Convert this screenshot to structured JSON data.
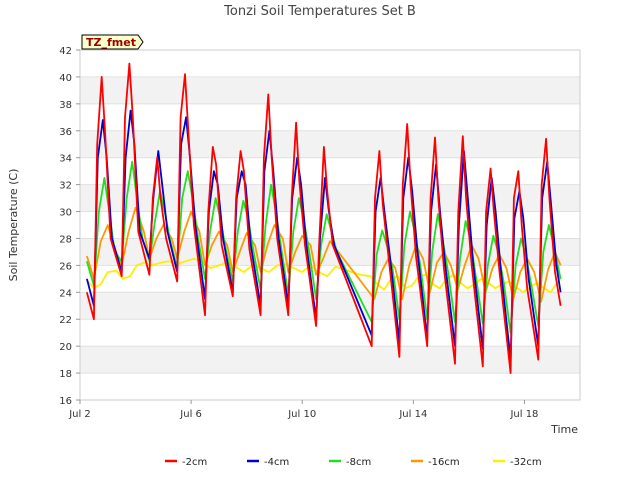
{
  "chart_data": {
    "type": "line",
    "title": "Tonzi Soil Temperatures Set B",
    "xlabel": "Time",
    "ylabel": "Soil Temperature (C)",
    "annotation": "TZ_fmet",
    "xlim": [
      2.0,
      20.0
    ],
    "ylim": [
      16,
      42
    ],
    "x_ticks": [
      {
        "value": 2,
        "label": "Jul 2"
      },
      {
        "value": 6,
        "label": "Jul 6"
      },
      {
        "value": 10,
        "label": "Jul 10"
      },
      {
        "value": 14,
        "label": "Jul 14"
      },
      {
        "value": 18,
        "label": "Jul 18"
      }
    ],
    "y_ticks": [
      16,
      18,
      20,
      22,
      24,
      26,
      28,
      30,
      32,
      34,
      36,
      38,
      40,
      42
    ],
    "grid": "horizontal bands",
    "legend_position": "bottom",
    "series": [
      {
        "name": "-2cm",
        "color": "#ff0000",
        "x": [
          2.25,
          2.5,
          2.62,
          2.78,
          2.9,
          3.1,
          3.5,
          3.62,
          3.78,
          3.9,
          4.1,
          4.5,
          4.62,
          4.78,
          4.9,
          5.1,
          5.5,
          5.62,
          5.78,
          5.9,
          6.1,
          6.5,
          6.62,
          6.78,
          6.9,
          7.1,
          7.5,
          7.62,
          7.78,
          7.9,
          8.1,
          8.5,
          8.62,
          8.78,
          8.9,
          9.1,
          9.5,
          9.62,
          9.78,
          9.9,
          10.1,
          10.5,
          10.62,
          10.78,
          10.9,
          11.1,
          12.5,
          12.62,
          12.78,
          12.9,
          13.1,
          13.5,
          13.62,
          13.78,
          13.9,
          14.1,
          14.5,
          14.62,
          14.78,
          14.9,
          15.1,
          15.5,
          15.62,
          15.78,
          15.9,
          16.1,
          16.5,
          16.62,
          16.78,
          16.9,
          17.1,
          17.5,
          17.62,
          17.78,
          17.9,
          18.1,
          18.5,
          18.62,
          18.78,
          18.9,
          19.1,
          19.3
        ],
        "y": [
          24,
          22,
          35,
          40,
          36,
          28,
          25.2,
          37,
          41,
          37,
          28.5,
          25.3,
          31,
          34,
          31,
          28,
          24.8,
          37,
          40.2,
          36,
          29,
          22.3,
          30,
          34.8,
          33.5,
          27.5,
          23.7,
          31,
          34.5,
          33,
          27.2,
          22.3,
          34,
          38.7,
          34,
          28,
          22.3,
          31,
          36.6,
          32.2,
          27.5,
          21.5,
          28,
          34.8,
          31.5,
          27.5,
          20,
          31,
          34.5,
          30.5,
          26.8,
          19.2,
          32,
          36.5,
          32,
          26.6,
          20,
          31,
          35.5,
          31,
          25.8,
          18.7,
          30,
          35.6,
          31,
          26,
          18.5,
          30,
          33.2,
          30,
          25.6,
          18,
          31,
          33,
          29,
          24.3,
          19,
          32,
          35.4,
          31,
          25.5,
          23
        ]
      },
      {
        "name": "-4cm",
        "color": "#0000cc",
        "x": [
          2.25,
          2.5,
          2.64,
          2.82,
          2.96,
          3.15,
          3.5,
          3.64,
          3.82,
          3.96,
          4.15,
          4.5,
          4.64,
          4.82,
          4.96,
          5.15,
          5.5,
          5.64,
          5.82,
          5.96,
          6.15,
          6.5,
          6.64,
          6.82,
          6.96,
          7.15,
          7.5,
          7.64,
          7.82,
          7.96,
          8.15,
          8.5,
          8.64,
          8.82,
          8.96,
          9.15,
          9.5,
          9.64,
          9.82,
          9.96,
          10.15,
          10.5,
          10.64,
          10.82,
          10.96,
          11.15,
          12.5,
          12.64,
          12.82,
          12.96,
          13.15,
          13.5,
          13.64,
          13.82,
          13.96,
          14.15,
          14.5,
          14.64,
          14.82,
          14.96,
          15.15,
          15.5,
          15.64,
          15.82,
          15.96,
          16.15,
          16.5,
          16.64,
          16.82,
          16.96,
          17.15,
          17.5,
          17.64,
          17.82,
          17.96,
          18.15,
          18.5,
          18.64,
          18.82,
          18.96,
          19.15,
          19.3
        ],
        "y": [
          25,
          23,
          34,
          36.8,
          34,
          28,
          25.5,
          34,
          37.5,
          35,
          28.5,
          26.5,
          31,
          34.5,
          32,
          28.5,
          25.5,
          35,
          37,
          34,
          29,
          23.5,
          30,
          33,
          32,
          28,
          24,
          31,
          33,
          32,
          27.5,
          23,
          33,
          36,
          33,
          28,
          23,
          31,
          34,
          32,
          27.5,
          22,
          28,
          32.5,
          30,
          27.5,
          20.8,
          30,
          32.5,
          30,
          26.8,
          20.3,
          31,
          34,
          31.5,
          27,
          20.5,
          30,
          33.5,
          30,
          26,
          20,
          29,
          34.5,
          31,
          26.2,
          19.8,
          29,
          32.5,
          30,
          25.7,
          19,
          29.5,
          31.5,
          29.5,
          25,
          20,
          31,
          33.7,
          30.5,
          26,
          24
        ]
      },
      {
        "name": "-8cm",
        "color": "#22dd22",
        "x": [
          2.25,
          2.5,
          2.68,
          2.88,
          3.05,
          3.25,
          3.5,
          3.68,
          3.88,
          4.05,
          4.25,
          4.5,
          4.68,
          4.88,
          5.05,
          5.25,
          5.5,
          5.68,
          5.88,
          6.05,
          6.25,
          6.5,
          6.68,
          6.88,
          7.05,
          7.25,
          7.5,
          7.68,
          7.88,
          8.05,
          8.25,
          8.5,
          8.68,
          8.88,
          9.05,
          9.25,
          9.5,
          9.68,
          9.88,
          10.05,
          10.25,
          10.5,
          10.68,
          10.88,
          11.05,
          11.25,
          12.5,
          12.68,
          12.88,
          13.05,
          13.25,
          13.5,
          13.68,
          13.88,
          14.05,
          14.25,
          14.5,
          14.68,
          14.88,
          15.05,
          15.25,
          15.5,
          15.68,
          15.88,
          16.05,
          16.25,
          16.5,
          16.68,
          16.88,
          17.05,
          17.25,
          17.5,
          17.68,
          17.88,
          18.05,
          18.25,
          18.5,
          18.68,
          18.88,
          19.05,
          19.25,
          19.3
        ],
        "y": [
          26.3,
          24.5,
          30,
          32.5,
          30,
          27,
          26.3,
          31,
          33.7,
          31,
          28,
          26.3,
          29,
          31.5,
          30,
          27.8,
          25.8,
          31,
          33,
          31,
          28,
          25,
          28.5,
          31,
          29.5,
          27.2,
          24.8,
          28.5,
          30.8,
          29.5,
          27,
          24.2,
          29,
          32,
          30,
          27.2,
          23.8,
          28.5,
          31,
          29.5,
          27,
          23.5,
          27.5,
          29.8,
          28.5,
          27,
          21.8,
          26.8,
          28.6,
          27.5,
          25.8,
          22,
          27.5,
          30,
          28.5,
          26,
          22,
          27,
          29.8,
          28,
          25.5,
          21.8,
          26.5,
          29.3,
          28,
          25.2,
          21.7,
          26,
          28.2,
          27,
          24.8,
          21,
          26,
          28,
          26.8,
          24.5,
          21.5,
          27,
          29,
          27.5,
          25.5,
          25
        ]
      },
      {
        "name": "-16cm",
        "color": "#ff9900",
        "x": [
          2.25,
          2.5,
          2.75,
          3.0,
          3.3,
          3.5,
          3.75,
          4.0,
          4.3,
          4.5,
          4.75,
          5.0,
          5.3,
          5.5,
          5.75,
          6.0,
          6.3,
          6.5,
          6.75,
          7.0,
          7.3,
          7.5,
          7.75,
          8.0,
          8.3,
          8.5,
          8.75,
          9.0,
          9.3,
          9.5,
          9.75,
          10.0,
          10.3,
          10.5,
          10.75,
          11.0,
          11.3,
          12.6,
          12.85,
          13.1,
          13.35,
          13.6,
          13.85,
          14.1,
          14.35,
          14.6,
          14.85,
          15.1,
          15.35,
          15.6,
          15.85,
          16.1,
          16.35,
          16.6,
          16.85,
          17.1,
          17.35,
          17.6,
          17.85,
          18.1,
          18.35,
          18.6,
          18.85,
          19.1,
          19.3
        ],
        "y": [
          26.7,
          25,
          27.8,
          29,
          27,
          26,
          28.5,
          30.3,
          28.5,
          26.5,
          28,
          29,
          28,
          26.5,
          28.5,
          30,
          28.5,
          26,
          27.5,
          28.5,
          27.5,
          25.5,
          27,
          28.4,
          27.5,
          25.5,
          27.5,
          29,
          28,
          25.5,
          27,
          28.2,
          27.5,
          25.3,
          26.5,
          27.8,
          27,
          23.5,
          25.5,
          26.5,
          25.8,
          23.5,
          26,
          27.5,
          26.5,
          24,
          26.2,
          27,
          26,
          24.2,
          26,
          27.5,
          26.5,
          24,
          25.8,
          26.8,
          25.8,
          23.5,
          25.5,
          26.5,
          25.5,
          23.3,
          25.7,
          27,
          26
        ]
      },
      {
        "name": "-32cm",
        "color": "#ffee00",
        "x": [
          2.25,
          2.5,
          2.75,
          3.0,
          3.3,
          3.55,
          3.8,
          4.05,
          4.3,
          4.6,
          4.9,
          5.2,
          5.5,
          5.8,
          6.1,
          6.4,
          6.7,
          7.0,
          7.3,
          7.6,
          7.9,
          8.2,
          8.5,
          8.8,
          9.1,
          9.4,
          9.7,
          10.0,
          10.3,
          10.6,
          10.9,
          11.2,
          11.5,
          11.8,
          12.1,
          12.45,
          12.7,
          12.95,
          13.2,
          13.45,
          13.7,
          13.95,
          14.2,
          14.45,
          14.7,
          14.95,
          15.2,
          15.45,
          15.7,
          15.95,
          16.2,
          16.45,
          16.7,
          16.95,
          17.2,
          17.45,
          17.7,
          17.95,
          18.2,
          18.45,
          18.7,
          18.95,
          19.2,
          19.3
        ],
        "y": [
          24.9,
          24.3,
          24.6,
          25.5,
          25.6,
          25,
          25.2,
          26,
          26.2,
          26,
          26.2,
          26.3,
          26.1,
          26.3,
          26.5,
          26.3,
          25.8,
          26,
          26.2,
          25.9,
          25.5,
          26,
          25.8,
          25.5,
          26,
          26.1,
          25.8,
          25.5,
          26,
          25.5,
          25.2,
          25.9,
          25.7,
          25.5,
          25.3,
          25.2,
          24.6,
          24.2,
          25,
          25.2,
          24.3,
          24.5,
          25.2,
          25.3,
          24.6,
          24.3,
          25,
          25.3,
          24.7,
          24.3,
          24.6,
          25,
          24.7,
          24.3,
          24.6,
          24.8,
          24.4,
          24.0,
          24.4,
          24.7,
          24.3,
          24.0,
          24.8,
          25.0
        ]
      }
    ]
  }
}
